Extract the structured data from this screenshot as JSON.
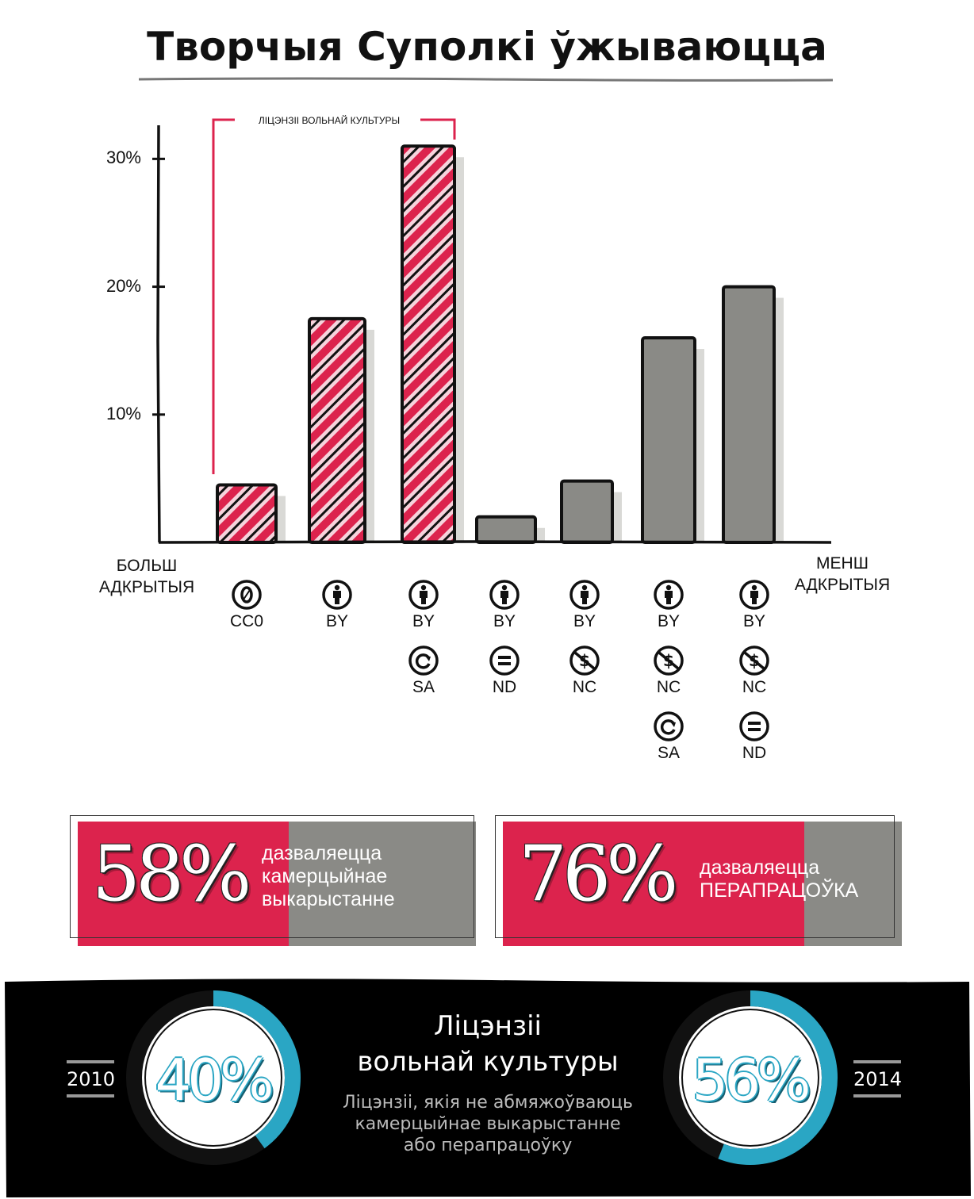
{
  "title": "Творчыя Суполкі ўжываюцца",
  "bracket_label": "ЛІЦЭНЗІІ ВОЛЬНАЙ КУЛЬТУРЫ",
  "axis": {
    "left_end": [
      "БОЛЬШ",
      "АДКРЫТЫЯ"
    ],
    "right_end": [
      "МЕНШ",
      "АДКРЫТЫЯ"
    ]
  },
  "colors": {
    "accent_red": "#dc234d",
    "gray": "#8a8a86",
    "blue": "#2aa6c4",
    "dark": "#000000"
  },
  "chart_data": {
    "type": "bar",
    "categories": [
      "CC0",
      "BY",
      "BY-SA",
      "BY-ND",
      "BY-NC",
      "BY-NC-SA",
      "BY-NC-ND"
    ],
    "values": [
      4.5,
      17.5,
      31,
      2,
      4.8,
      16,
      20
    ],
    "ylim": [
      0,
      33
    ],
    "yticks": [
      "10%",
      "20%",
      "30%"
    ],
    "ytick_values": [
      10,
      20,
      30
    ],
    "free_culture": [
      true,
      true,
      true,
      false,
      false,
      false,
      false
    ],
    "grid": false
  },
  "licenses": [
    {
      "parts": [
        {
          "icon": "zero-icon",
          "label": "CC0"
        }
      ]
    },
    {
      "parts": [
        {
          "icon": "attribution-icon",
          "label": "BY"
        }
      ]
    },
    {
      "parts": [
        {
          "icon": "attribution-icon",
          "label": "BY"
        },
        {
          "icon": "share-alike-icon",
          "label": "SA"
        }
      ]
    },
    {
      "parts": [
        {
          "icon": "attribution-icon",
          "label": "BY"
        },
        {
          "icon": "no-derivatives-icon",
          "label": "ND"
        }
      ]
    },
    {
      "parts": [
        {
          "icon": "attribution-icon",
          "label": "BY"
        },
        {
          "icon": "non-commercial-icon",
          "label": "NC"
        }
      ]
    },
    {
      "parts": [
        {
          "icon": "attribution-icon",
          "label": "BY"
        },
        {
          "icon": "non-commercial-icon",
          "label": "NC"
        },
        {
          "icon": "share-alike-icon",
          "label": "SA"
        }
      ]
    },
    {
      "parts": [
        {
          "icon": "attribution-icon",
          "label": "BY"
        },
        {
          "icon": "non-commercial-icon",
          "label": "NC"
        },
        {
          "icon": "no-derivatives-icon",
          "label": "ND"
        }
      ]
    }
  ],
  "stats": [
    {
      "percent": "58%",
      "value": 58,
      "text": [
        "дазваляецца",
        "камерцыйнае",
        "выкарыстанне"
      ]
    },
    {
      "percent": "76%",
      "value": 76,
      "text": [
        "дазваляецца",
        "ПЕРАПРАЦОЎКА"
      ]
    }
  ],
  "free_culture": {
    "title": [
      "Ліцэнзіі",
      "вольнай культуры"
    ],
    "subtitle": [
      "Ліцэнзіі, якія не абмяжоўваюць",
      "камерцыйнае выкарыстанне",
      "або перапрацоўку"
    ],
    "years": [
      {
        "year": "2010",
        "percent": "40%",
        "value": 40
      },
      {
        "year": "2014",
        "percent": "56%",
        "value": 56
      }
    ]
  }
}
